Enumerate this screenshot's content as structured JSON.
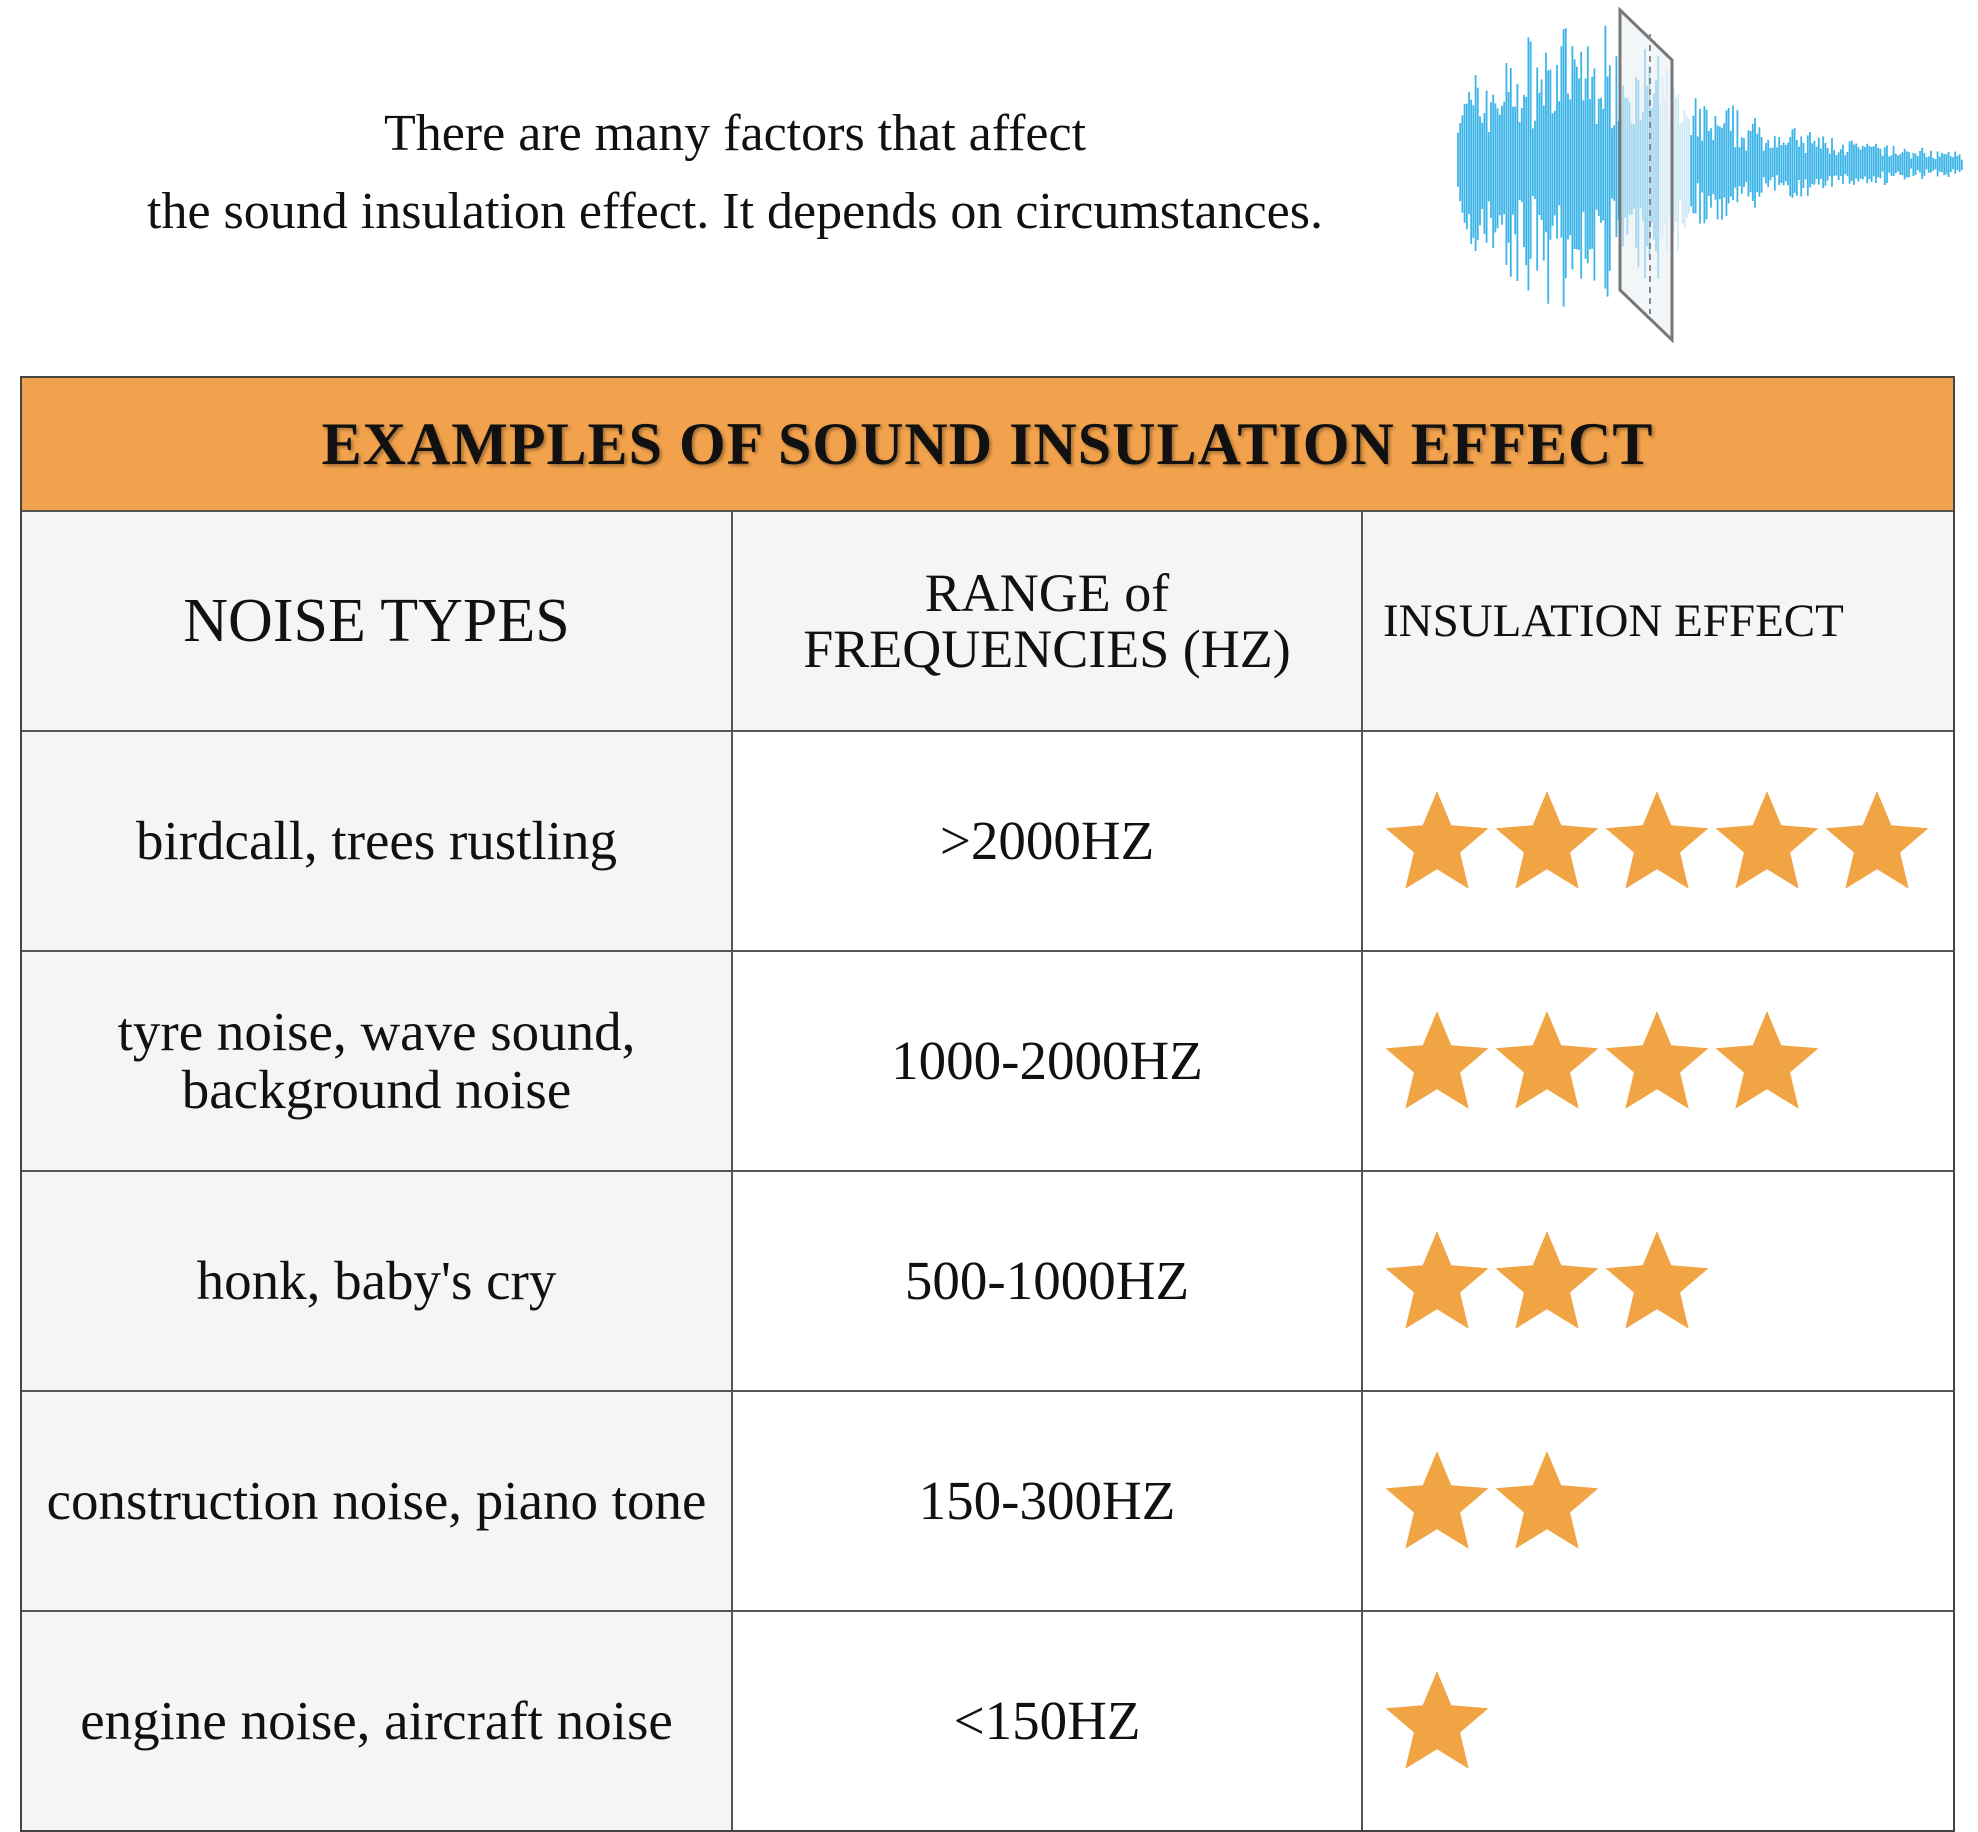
{
  "intro": {
    "lines": [
      "There are many factors that affect",
      "the sound insulation effect. It depends on circumstances."
    ]
  },
  "table": {
    "title": "EXAMPLES OF SOUND INSULATION EFFECT",
    "headers": [
      "NOISE TYPES",
      "RANGE of FREQUENCIES (HZ)",
      "INSULATION EFFECT"
    ],
    "star_color": "#f0a443",
    "rows": [
      {
        "noise": "birdcall, trees rustling",
        "range": ">2000HZ",
        "stars": 5
      },
      {
        "noise": "tyre noise, wave sound, background noise",
        "range": "1000-2000HZ",
        "stars": 4
      },
      {
        "noise": "honk, baby's cry",
        "range": "500-1000HZ",
        "stars": 3
      },
      {
        "noise": "construction noise, piano tone",
        "range": "150-300HZ",
        "stars": 2
      },
      {
        "noise": "engine noise, aircraft noise",
        "range": "<150HZ",
        "stars": 1
      }
    ]
  }
}
